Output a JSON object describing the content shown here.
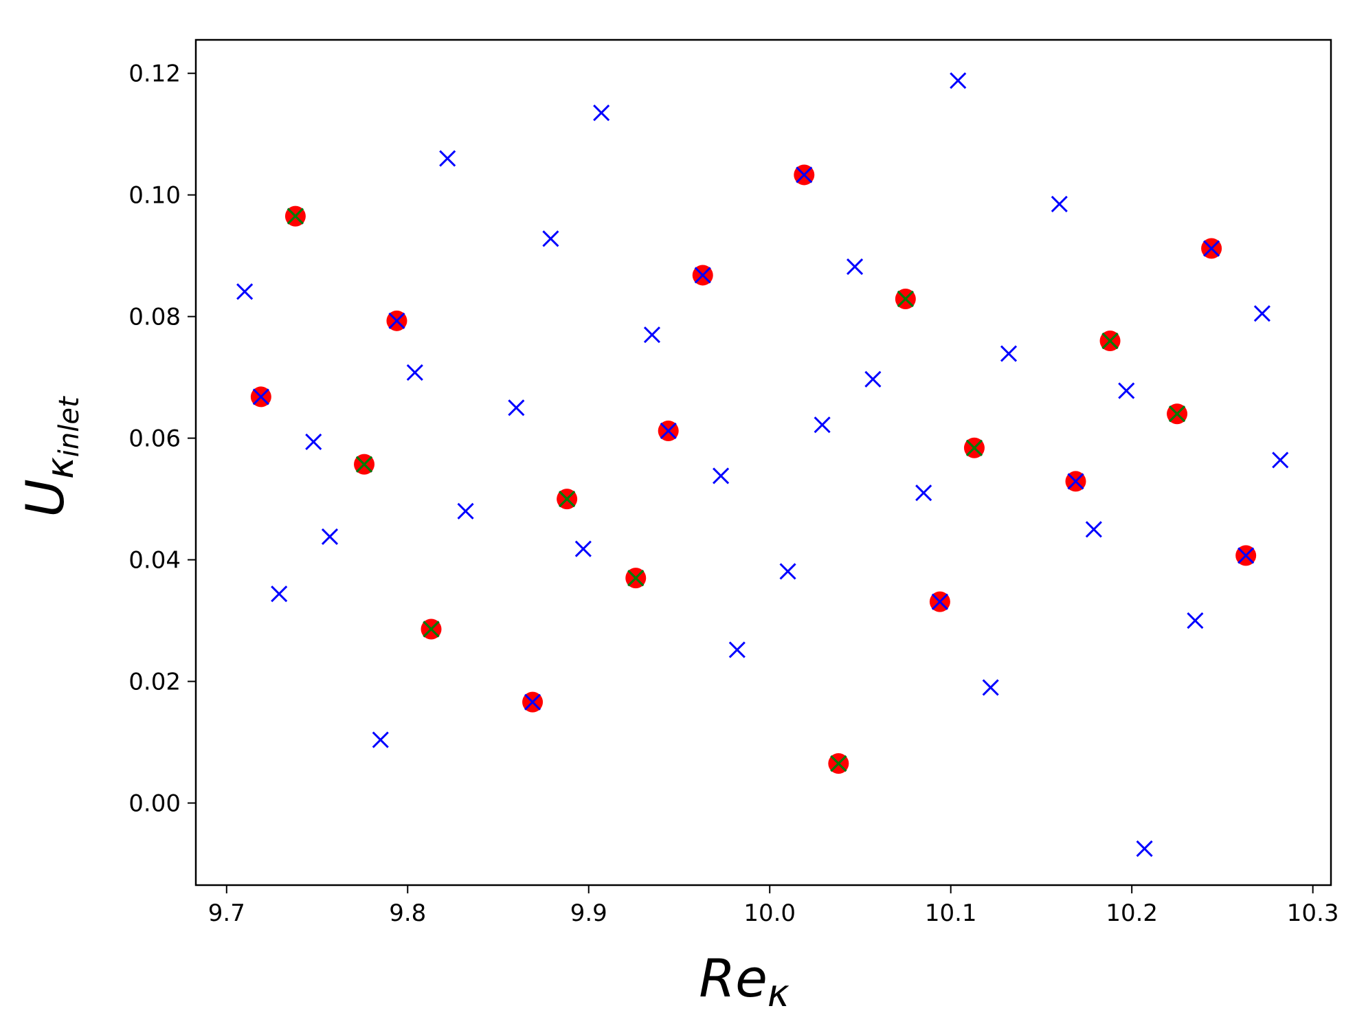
{
  "chart_data": {
    "type": "scatter",
    "xlabel": "Re",
    "xlabel_sub": "κ",
    "ylabel": "U",
    "ylabel_sub": "κ",
    "ylabel_subsub": "inlet",
    "xlim": [
      9.683,
      10.31
    ],
    "ylim": [
      -0.0135,
      0.1255
    ],
    "xticks": [
      9.7,
      9.8,
      9.9,
      10.0,
      10.1,
      10.2,
      10.3
    ],
    "xtick_labels": [
      "9.7",
      "9.8",
      "9.9",
      "10.0",
      "10.1",
      "10.2",
      "10.3"
    ],
    "yticks": [
      0.0,
      0.02,
      0.04,
      0.06,
      0.08,
      0.1,
      0.12
    ],
    "ytick_labels": [
      "0.00",
      "0.02",
      "0.04",
      "0.06",
      "0.08",
      "0.10",
      "0.12"
    ],
    "grid": false,
    "series": [
      {
        "marker": "circle",
        "color": "#ff0000",
        "points": [
          [
            9.719,
            0.0668
          ],
          [
            9.738,
            0.0965
          ],
          [
            9.776,
            0.0557
          ],
          [
            9.794,
            0.0793
          ],
          [
            9.813,
            0.0286
          ],
          [
            9.869,
            0.0166
          ],
          [
            9.888,
            0.05
          ],
          [
            9.926,
            0.037
          ],
          [
            9.944,
            0.0612
          ],
          [
            9.963,
            0.0868
          ],
          [
            10.019,
            0.1033
          ],
          [
            10.038,
            0.0065
          ],
          [
            10.075,
            0.0829
          ],
          [
            10.094,
            0.0331
          ],
          [
            10.113,
            0.0584
          ],
          [
            10.169,
            0.0529
          ],
          [
            10.188,
            0.076
          ],
          [
            10.225,
            0.064
          ],
          [
            10.244,
            0.0912
          ],
          [
            10.263,
            0.0407
          ]
        ]
      },
      {
        "marker": "x",
        "color": "#0000ff",
        "points": [
          [
            9.71,
            0.0841
          ],
          [
            9.719,
            0.0668
          ],
          [
            9.729,
            0.0344
          ],
          [
            9.738,
            0.0965
          ],
          [
            9.748,
            0.0594
          ],
          [
            9.757,
            0.0438
          ],
          [
            9.776,
            0.0557
          ],
          [
            9.785,
            0.0104
          ],
          [
            9.794,
            0.0793
          ],
          [
            9.804,
            0.0708
          ],
          [
            9.813,
            0.0286
          ],
          [
            9.822,
            0.106
          ],
          [
            9.832,
            0.048
          ],
          [
            9.86,
            0.065
          ],
          [
            9.869,
            0.0166
          ],
          [
            9.879,
            0.0928
          ],
          [
            9.888,
            0.05
          ],
          [
            9.897,
            0.0418
          ],
          [
            9.907,
            0.1135
          ],
          [
            9.926,
            0.037
          ],
          [
            9.935,
            0.077
          ],
          [
            9.944,
            0.0612
          ],
          [
            9.963,
            0.0868
          ],
          [
            9.973,
            0.0538
          ],
          [
            9.982,
            0.0252
          ],
          [
            10.01,
            0.0381
          ],
          [
            10.019,
            0.1033
          ],
          [
            10.029,
            0.0622
          ],
          [
            10.038,
            0.0065
          ],
          [
            10.047,
            0.0882
          ],
          [
            10.057,
            0.0697
          ],
          [
            10.075,
            0.0829
          ],
          [
            10.085,
            0.051
          ],
          [
            10.094,
            0.0331
          ],
          [
            10.104,
            0.1188
          ],
          [
            10.113,
            0.0584
          ],
          [
            10.122,
            0.019
          ],
          [
            10.132,
            0.0739
          ],
          [
            10.16,
            0.0985
          ],
          [
            10.169,
            0.0529
          ],
          [
            10.179,
            0.045
          ],
          [
            10.188,
            0.076
          ],
          [
            10.197,
            0.0678
          ],
          [
            10.207,
            -0.0075
          ],
          [
            10.225,
            0.064
          ],
          [
            10.235,
            0.03
          ],
          [
            10.244,
            0.0912
          ],
          [
            10.263,
            0.0407
          ],
          [
            10.272,
            0.0805
          ],
          [
            10.282,
            0.0564
          ]
        ]
      },
      {
        "marker": "x",
        "color": "#008000",
        "points": [
          [
            9.738,
            0.0965
          ],
          [
            9.776,
            0.0557
          ],
          [
            9.813,
            0.0286
          ],
          [
            9.888,
            0.05
          ],
          [
            9.926,
            0.037
          ],
          [
            10.038,
            0.0065
          ],
          [
            10.075,
            0.0829
          ],
          [
            10.113,
            0.0584
          ],
          [
            10.188,
            0.076
          ],
          [
            10.225,
            0.064
          ]
        ]
      }
    ]
  }
}
